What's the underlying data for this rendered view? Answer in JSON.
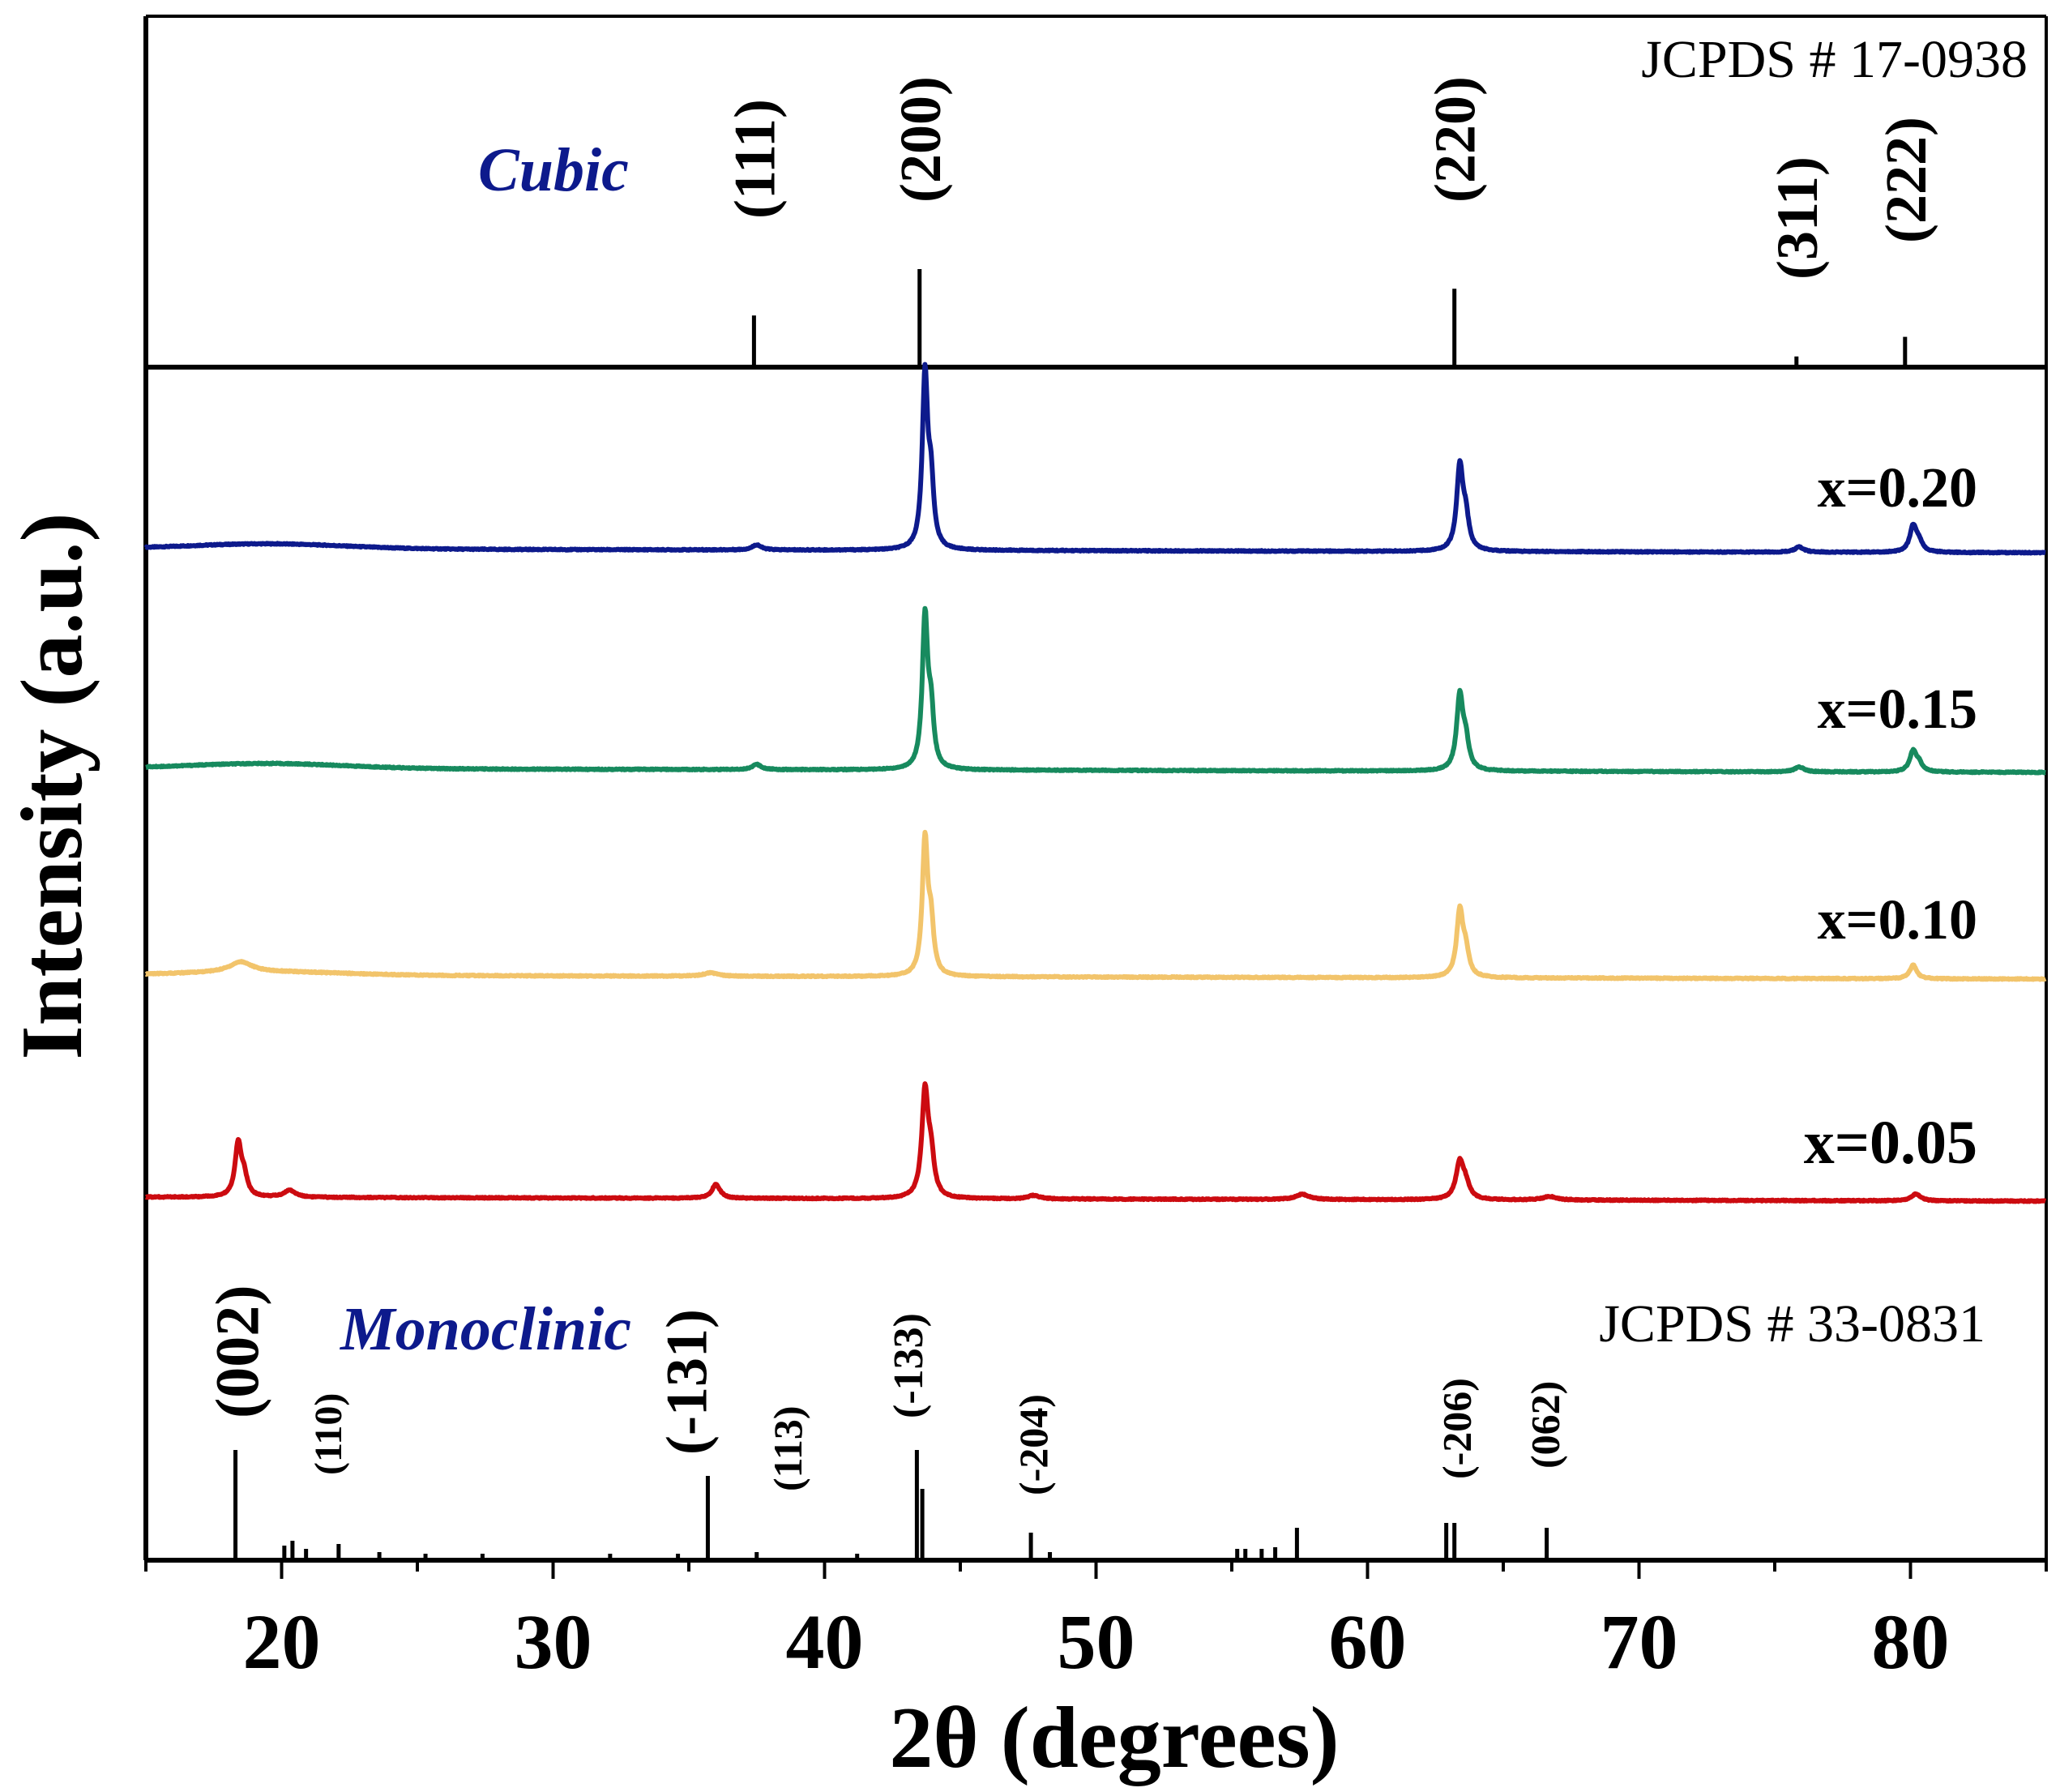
{
  "chart_data": {
    "type": "line",
    "xlabel": "2θ (degrees)",
    "ylabel": "Intensity (a.u.)",
    "xlim": [
      15,
      85
    ],
    "x_ticks": [
      20,
      30,
      40,
      50,
      60,
      70,
      80
    ],
    "x_tick_labels": [
      "20",
      "30",
      "40",
      "50",
      "60",
      "70",
      "80"
    ],
    "top_reference": {
      "phase_label": "Cubic",
      "card": "JCPDS # 17-0938",
      "color": "#0d1a8c",
      "lines": [
        {
          "two_theta": 37.4,
          "rel_intensity": 0.29,
          "hkl": "(111)"
        },
        {
          "two_theta": 43.5,
          "rel_intensity": 0.55,
          "hkl": "(200)"
        },
        {
          "two_theta": 63.2,
          "rel_intensity": 0.44,
          "hkl": "(220)"
        },
        {
          "two_theta": 75.8,
          "rel_intensity": 0.06,
          "hkl": "(311)"
        },
        {
          "two_theta": 79.8,
          "rel_intensity": 0.17,
          "hkl": "(222)"
        }
      ]
    },
    "bottom_reference": {
      "phase_label": "Monoclinic",
      "card": "JCPDS # 33-0831",
      "color": "#0d1a8c",
      "lines": [
        {
          "two_theta": 18.3,
          "rel_intensity": 0.68,
          "hkl": "(002)"
        },
        {
          "two_theta": 20.1,
          "rel_intensity": 0.09,
          "hkl": ""
        },
        {
          "two_theta": 20.4,
          "rel_intensity": 0.12,
          "hkl": "(110)"
        },
        {
          "two_theta": 20.9,
          "rel_intensity": 0.07,
          "hkl": ""
        },
        {
          "two_theta": 22.1,
          "rel_intensity": 0.1,
          "hkl": ""
        },
        {
          "two_theta": 23.6,
          "rel_intensity": 0.05,
          "hkl": ""
        },
        {
          "two_theta": 25.3,
          "rel_intensity": 0.04,
          "hkl": ""
        },
        {
          "two_theta": 27.4,
          "rel_intensity": 0.04,
          "hkl": ""
        },
        {
          "two_theta": 32.1,
          "rel_intensity": 0.04,
          "hkl": ""
        },
        {
          "two_theta": 34.6,
          "rel_intensity": 0.04,
          "hkl": ""
        },
        {
          "two_theta": 35.7,
          "rel_intensity": 0.52,
          "hkl": "(-131)"
        },
        {
          "two_theta": 37.5,
          "rel_intensity": 0.05,
          "hkl": "(113)"
        },
        {
          "two_theta": 41.2,
          "rel_intensity": 0.04,
          "hkl": ""
        },
        {
          "two_theta": 43.4,
          "rel_intensity": 0.68,
          "hkl": ""
        },
        {
          "two_theta": 43.6,
          "rel_intensity": 0.44,
          "hkl": "(-133)"
        },
        {
          "two_theta": 47.6,
          "rel_intensity": 0.17,
          "hkl": "(-204)"
        },
        {
          "two_theta": 48.3,
          "rel_intensity": 0.05,
          "hkl": ""
        },
        {
          "two_theta": 55.2,
          "rel_intensity": 0.07,
          "hkl": ""
        },
        {
          "two_theta": 55.5,
          "rel_intensity": 0.07,
          "hkl": ""
        },
        {
          "two_theta": 56.1,
          "rel_intensity": 0.07,
          "hkl": ""
        },
        {
          "two_theta": 56.6,
          "rel_intensity": 0.08,
          "hkl": ""
        },
        {
          "two_theta": 57.4,
          "rel_intensity": 0.2,
          "hkl": ""
        },
        {
          "two_theta": 62.9,
          "rel_intensity": 0.23,
          "hkl": ""
        },
        {
          "two_theta": 63.2,
          "rel_intensity": 0.23,
          "hkl": "(-206)"
        },
        {
          "two_theta": 66.6,
          "rel_intensity": 0.2,
          "hkl": "(062)"
        }
      ]
    },
    "series": [
      {
        "name": "x=0.20",
        "color": "#0d1a8c",
        "label_position": "right",
        "peaks": [
          {
            "two_theta": 43.7,
            "height": 1.0,
            "width": 0.12
          },
          {
            "two_theta": 63.4,
            "height": 0.48,
            "width": 0.14
          },
          {
            "two_theta": 80.1,
            "height": 0.15,
            "width": 0.15
          },
          {
            "two_theta": 75.9,
            "height": 0.03,
            "width": 0.2
          },
          {
            "two_theta": 37.5,
            "height": 0.03,
            "width": 0.2
          }
        ],
        "hump": {
          "two_theta": 19.5,
          "height": 0.03,
          "width": 4.0
        }
      },
      {
        "name": "x=0.15",
        "color": "#178a5e",
        "label_position": "right",
        "peaks": [
          {
            "two_theta": 43.7,
            "height": 0.88,
            "width": 0.12
          },
          {
            "two_theta": 63.4,
            "height": 0.43,
            "width": 0.14
          },
          {
            "two_theta": 80.1,
            "height": 0.12,
            "width": 0.15
          },
          {
            "two_theta": 75.9,
            "height": 0.03,
            "width": 0.2
          },
          {
            "two_theta": 37.5,
            "height": 0.03,
            "width": 0.2
          }
        ],
        "hump": {
          "two_theta": 19.5,
          "height": 0.03,
          "width": 4.0
        }
      },
      {
        "name": "x=0.10",
        "color": "#f2c46b",
        "label_position": "right",
        "peaks": [
          {
            "two_theta": 43.7,
            "height": 0.78,
            "width": 0.12
          },
          {
            "two_theta": 63.4,
            "height": 0.38,
            "width": 0.14
          },
          {
            "two_theta": 80.1,
            "height": 0.08,
            "width": 0.15
          },
          {
            "two_theta": 18.5,
            "height": 0.06,
            "width": 0.5
          },
          {
            "two_theta": 35.8,
            "height": 0.02,
            "width": 0.3
          }
        ],
        "hump": {
          "two_theta": 19.5,
          "height": 0.02,
          "width": 4.0
        }
      },
      {
        "name": "x=0.05",
        "color": "#cc0b10",
        "label_position": "right",
        "peaks": [
          {
            "two_theta": 18.4,
            "height": 0.3,
            "width": 0.14
          },
          {
            "two_theta": 20.3,
            "height": 0.04,
            "width": 0.25
          },
          {
            "two_theta": 36.0,
            "height": 0.08,
            "width": 0.18
          },
          {
            "two_theta": 43.7,
            "height": 0.6,
            "width": 0.14
          },
          {
            "two_theta": 47.7,
            "height": 0.02,
            "width": 0.25
          },
          {
            "two_theta": 57.6,
            "height": 0.03,
            "width": 0.3
          },
          {
            "two_theta": 63.4,
            "height": 0.21,
            "width": 0.17
          },
          {
            "two_theta": 66.7,
            "height": 0.02,
            "width": 0.3
          },
          {
            "two_theta": 80.2,
            "height": 0.04,
            "width": 0.2
          }
        ],
        "hump": {
          "two_theta": 30.0,
          "height": 0.0,
          "width": 4.0
        }
      }
    ]
  }
}
